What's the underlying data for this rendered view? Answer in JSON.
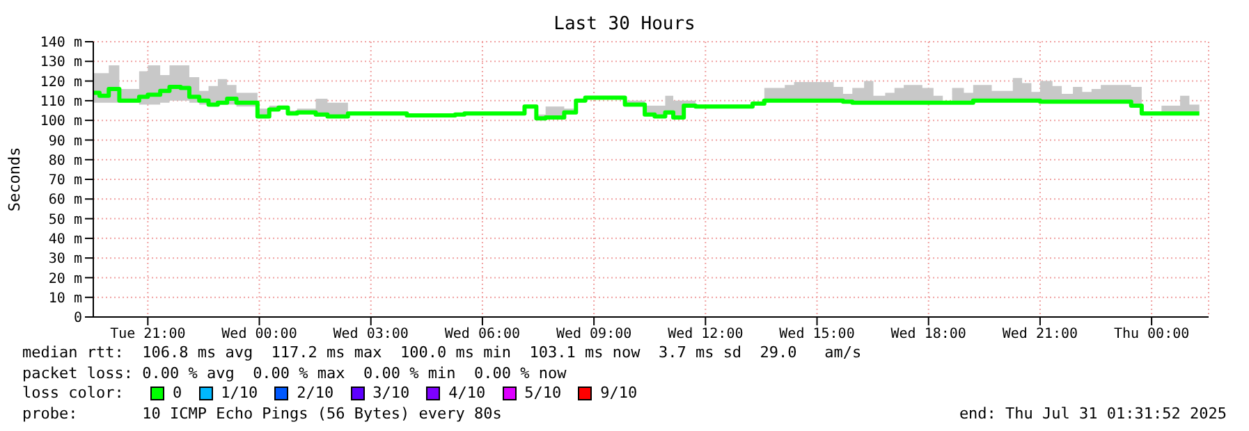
{
  "chart_data": {
    "type": "step",
    "title": "Last 30 Hours",
    "ylabel": "Seconds",
    "x": [
      "2025-07-29T19:32",
      "2025-07-29T19:42",
      "2025-07-29T19:57",
      "2025-07-29T20:14",
      "2025-07-29T20:46",
      "2025-07-29T21:00",
      "2025-07-29T21:20",
      "2025-07-29T21:35",
      "2025-07-29T21:53",
      "2025-07-29T22:07",
      "2025-07-29T22:23",
      "2025-07-29T22:38",
      "2025-07-29T22:53",
      "2025-07-29T23:08",
      "2025-07-29T23:23",
      "2025-07-29T23:57",
      "2025-07-30T00:16",
      "2025-07-30T00:31",
      "2025-07-30T00:46",
      "2025-07-30T01:01",
      "2025-07-30T01:31",
      "2025-07-30T01:50",
      "2025-07-30T02:23",
      "2025-07-30T03:58",
      "2025-07-30T05:16",
      "2025-07-30T05:31",
      "2025-07-30T07:08",
      "2025-07-30T07:27",
      "2025-07-30T07:42",
      "2025-07-30T08:12",
      "2025-07-30T08:31",
      "2025-07-30T08:46",
      "2025-07-30T09:50",
      "2025-07-30T10:22",
      "2025-07-30T10:38",
      "2025-07-30T10:55",
      "2025-07-30T11:08",
      "2025-07-30T11:25",
      "2025-07-30T11:44",
      "2025-07-30T13:16",
      "2025-07-30T13:35",
      "2025-07-30T14:08",
      "2025-07-30T14:23",
      "2025-07-30T15:27",
      "2025-07-30T15:42",
      "2025-07-30T15:57",
      "2025-07-30T16:16",
      "2025-07-30T16:31",
      "2025-07-30T16:50",
      "2025-07-30T17:05",
      "2025-07-30T17:20",
      "2025-07-30T17:50",
      "2025-07-30T18:08",
      "2025-07-30T18:23",
      "2025-07-30T18:38",
      "2025-07-30T18:57",
      "2025-07-30T19:12",
      "2025-07-30T19:42",
      "2025-07-30T20:16",
      "2025-07-30T20:31",
      "2025-07-30T20:46",
      "2025-07-30T21:00",
      "2025-07-30T21:20",
      "2025-07-30T21:35",
      "2025-07-30T21:53",
      "2025-07-30T22:08",
      "2025-07-30T22:23",
      "2025-07-30T22:38",
      "2025-07-30T23:27",
      "2025-07-30T23:44",
      "2025-07-31T00:16",
      "2025-07-31T00:46",
      "2025-07-31T01:01",
      "2025-07-31T01:17"
    ],
    "series": [
      {
        "color": "#00ff00",
        "values": [
          114,
          112.5,
          116,
          110,
          112,
          113,
          115,
          117,
          116.5,
          112,
          110,
          108,
          109,
          111,
          109,
          102,
          105.5,
          106.5,
          103.5,
          104,
          103,
          102,
          103.5,
          102.5,
          103,
          103.5,
          107,
          101,
          101.5,
          104,
          110,
          111.5,
          108,
          103,
          102,
          104,
          101.5,
          107.5,
          107,
          108.5,
          110,
          110,
          110,
          110,
          109.5,
          109,
          109,
          109,
          109,
          109,
          109,
          109,
          109,
          109,
          109,
          109,
          110,
          110,
          110,
          110,
          110,
          109.5,
          109.5,
          109.5,
          109.5,
          109.5,
          109.5,
          109.5,
          107.5,
          103.5,
          103.5,
          103.5,
          103.5,
          103.5
        ],
        "lower": [
          109,
          109,
          109,
          109,
          108,
          108,
          109,
          110,
          110,
          109,
          108,
          107,
          108,
          108,
          107,
          101,
          105,
          106,
          103,
          104,
          102,
          101.5,
          103,
          102,
          103,
          103,
          106.5,
          100,
          101,
          103.5,
          109.5,
          111,
          107.5,
          102.5,
          101.5,
          103,
          101,
          107,
          106.5,
          108,
          109.5,
          109.5,
          109.5,
          109.5,
          109,
          108.5,
          108.5,
          108.5,
          108.5,
          108.5,
          108.5,
          108.5,
          108.5,
          108.5,
          108.5,
          108.5,
          109.5,
          109.5,
          109.5,
          109.5,
          109.5,
          109,
          109,
          109,
          109,
          108.5,
          108.5,
          108.5,
          107,
          103,
          103,
          103,
          103,
          103
        ],
        "upper": [
          124,
          124,
          128,
          116,
          125,
          128,
          123,
          128,
          128,
          122,
          115,
          117.5,
          121,
          118,
          114,
          106,
          107.5,
          107,
          105,
          106,
          111,
          109,
          103.5,
          102.5,
          103,
          103.5,
          107,
          103,
          107,
          106,
          110,
          111.5,
          110,
          107.5,
          107.5,
          112.5,
          110,
          110,
          107,
          108.5,
          116.5,
          118,
          119.5,
          117,
          113.5,
          116.5,
          120,
          112.5,
          114,
          116.5,
          118,
          116.5,
          112.5,
          109.5,
          116.5,
          114,
          118,
          115,
          121.5,
          119,
          114.5,
          120,
          117.5,
          113.5,
          117,
          114.5,
          116,
          118,
          117,
          104.5,
          107.5,
          112.5,
          108,
          108
        ]
      }
    ],
    "xlim": [
      "2025-07-29T19:32",
      "2025-07-31T01:32"
    ],
    "xticks": [
      {
        "value": "2025-07-29T21:00",
        "label": "Tue 21:00"
      },
      {
        "value": "2025-07-30T00:00",
        "label": "Wed 00:00"
      },
      {
        "value": "2025-07-30T03:00",
        "label": "Wed 03:00"
      },
      {
        "value": "2025-07-30T06:00",
        "label": "Wed 06:00"
      },
      {
        "value": "2025-07-30T09:00",
        "label": "Wed 09:00"
      },
      {
        "value": "2025-07-30T12:00",
        "label": "Wed 12:00"
      },
      {
        "value": "2025-07-30T15:00",
        "label": "Wed 15:00"
      },
      {
        "value": "2025-07-30T18:00",
        "label": "Wed 18:00"
      },
      {
        "value": "2025-07-30T21:00",
        "label": "Wed 21:00"
      },
      {
        "value": "2025-07-31T00:00",
        "label": "Thu 00:00"
      }
    ],
    "ylim": [
      0,
      140
    ],
    "yticks": [
      0,
      {
        "value": 10,
        "label": "10 m"
      },
      {
        "value": 20,
        "label": "20 m"
      },
      {
        "value": 30,
        "label": "30 m"
      },
      {
        "value": 40,
        "label": "40 m"
      },
      {
        "value": 50,
        "label": "50 m"
      },
      {
        "value": 60,
        "label": "60 m"
      },
      {
        "value": 70,
        "label": "70 m"
      },
      {
        "value": 80,
        "label": "80 m"
      },
      {
        "value": 90,
        "label": "90 m"
      },
      {
        "value": 100,
        "label": "100 m"
      },
      {
        "value": 110,
        "label": "110 m"
      },
      {
        "value": 120,
        "label": "120 m"
      },
      {
        "value": 130,
        "label": "130 m"
      },
      {
        "value": 140,
        "label": "140 m"
      }
    ],
    "grid": true,
    "annotations": [
      "median rtt:  106.8 ms avg  117.2 ms max  100.0 ms min  103.1 ms now  3.7 ms sd  29.0   am/s",
      "packet loss: 0.00 % avg  0.00 % max  0.00 % min  0.00 % now",
      "loss color:",
      "0",
      "1/10",
      "2/10",
      "3/10",
      "4/10",
      "5/10",
      "9/10",
      "probe:       10 ICMP Echo Pings (56 Bytes) every 80s",
      "end: Thu Jul 31 01:31:52 2025"
    ]
  }
}
